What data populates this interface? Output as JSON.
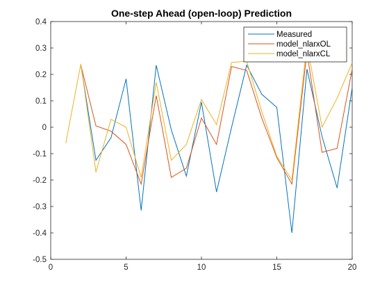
{
  "chart_data": {
    "type": "line",
    "title": "One-step Ahead (open-loop) Prediction",
    "xlabel": "",
    "ylabel": "",
    "xlim": [
      0,
      20
    ],
    "ylim": [
      -0.5,
      0.4
    ],
    "x_ticks": [
      0,
      5,
      10,
      15,
      20
    ],
    "y_ticks": [
      0.4,
      0.3,
      0.2,
      0.1,
      0,
      -0.1,
      -0.2,
      -0.3,
      -0.4,
      -0.5
    ],
    "x_tick_labels": [
      "0",
      "5",
      "10",
      "15",
      "20"
    ],
    "y_tick_labels": [
      "0.4",
      "0.3",
      "0.2",
      "0.1",
      "0",
      "-0.1",
      "-0.2",
      "-0.3",
      "-0.4",
      "-0.5"
    ],
    "grid": false,
    "legend_position": "top-right",
    "series": [
      {
        "name": "Measured",
        "color": "#0072BD",
        "x": [
          2,
          3,
          4,
          5,
          6,
          7,
          8,
          9,
          10,
          11,
          12,
          13,
          14,
          15,
          16,
          17,
          18,
          19,
          20
        ],
        "y": [
          0.235,
          -0.125,
          -0.04,
          0.183,
          -0.315,
          0.235,
          -0.01,
          -0.185,
          0.095,
          -0.245,
          0.0,
          0.235,
          0.125,
          0.075,
          -0.4,
          0.22,
          -0.035,
          -0.23,
          0.15
        ]
      },
      {
        "name": "model_nlarxOL",
        "color": "#D95319",
        "x": [
          2,
          3,
          4,
          5,
          6,
          7,
          8,
          9,
          10,
          11,
          12,
          13,
          14,
          15,
          16,
          17,
          18,
          19,
          20
        ],
        "y": [
          0.235,
          0.005,
          -0.015,
          -0.065,
          -0.215,
          0.12,
          -0.19,
          -0.155,
          0.035,
          -0.065,
          0.23,
          0.215,
          0.035,
          -0.115,
          -0.215,
          0.285,
          -0.095,
          -0.08,
          0.22
        ]
      },
      {
        "name": "model_nlarxCL",
        "color": "#EDB120",
        "x": [
          1,
          2,
          3,
          4,
          5,
          6,
          7,
          8,
          9,
          10,
          11,
          12,
          13,
          14,
          15,
          16,
          17,
          18,
          19,
          20
        ],
        "y": [
          -0.06,
          0.24,
          -0.17,
          0.03,
          0.0,
          -0.19,
          0.17,
          -0.125,
          -0.065,
          0.105,
          0.01,
          0.245,
          0.25,
          0.06,
          -0.11,
          -0.2,
          0.315,
          0.0,
          0.11,
          0.245
        ]
      }
    ]
  }
}
